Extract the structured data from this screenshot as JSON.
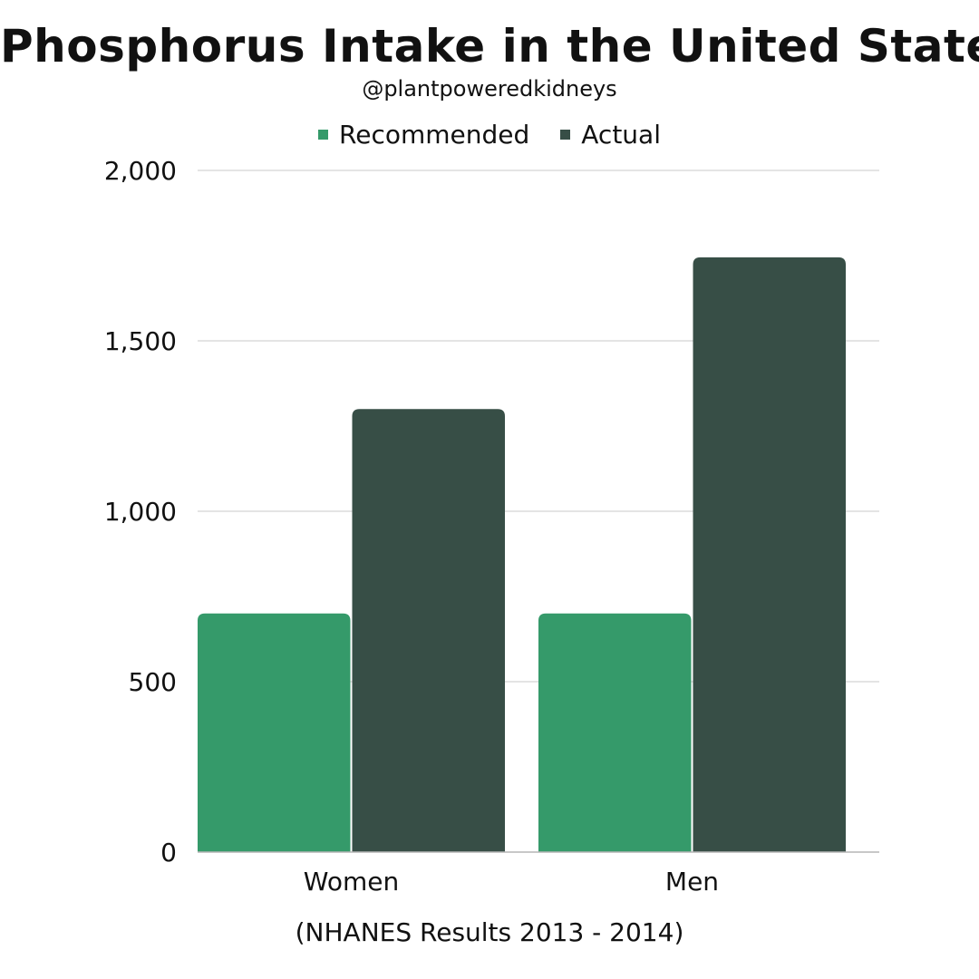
{
  "chart_data": {
    "type": "bar",
    "title": "Phosphorus Intake in the United States",
    "subtitle": "@plantpoweredkidneys",
    "caption": "(NHANES Results 2013 - 2014)",
    "categories": [
      "Women",
      "Men"
    ],
    "series": [
      {
        "name": "Recommended",
        "values": [
          700,
          700
        ],
        "color": "#359a6a"
      },
      {
        "name": "Actual",
        "values": [
          1300,
          1745
        ],
        "color": "#374e46"
      }
    ],
    "ylim": [
      0,
      2000
    ],
    "yticks": [
      0,
      500,
      1000,
      1500,
      2000
    ],
    "ytick_labels": [
      "0",
      "500",
      "1,000",
      "1,500",
      "2,000"
    ],
    "xlabel": "",
    "ylabel": "",
    "grid": true,
    "legend_position": "top"
  }
}
